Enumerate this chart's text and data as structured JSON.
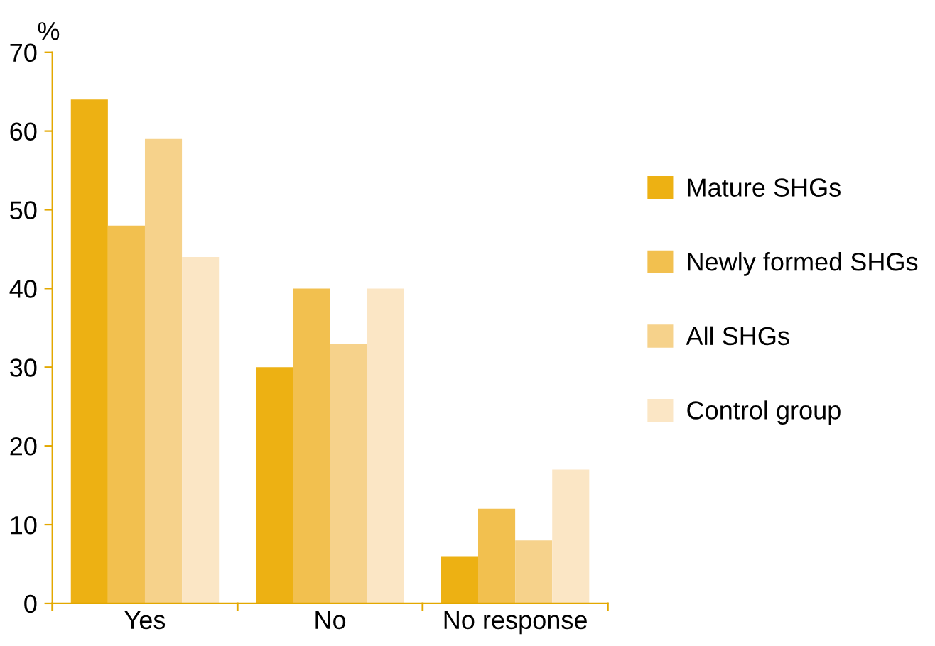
{
  "chart_data": {
    "type": "bar",
    "ylabel": "%",
    "categories": [
      "Yes",
      "No",
      "No response"
    ],
    "series": [
      {
        "name": "Mature SHGs",
        "color": "#edb113",
        "values": [
          64,
          30,
          6
        ]
      },
      {
        "name": "Newly formed SHGs",
        "color": "#f2c04f",
        "values": [
          48,
          40,
          12
        ]
      },
      {
        "name": "All SHGs",
        "color": "#f6d28b",
        "values": [
          59,
          33,
          8
        ]
      },
      {
        "name": "Control group",
        "color": "#fbe6c5",
        "values": [
          44,
          40,
          17
        ]
      }
    ],
    "ylim": [
      0,
      70
    ],
    "yticks": [
      0,
      10,
      20,
      30,
      40,
      50,
      60,
      70
    ],
    "grid": false,
    "legend": "right"
  }
}
